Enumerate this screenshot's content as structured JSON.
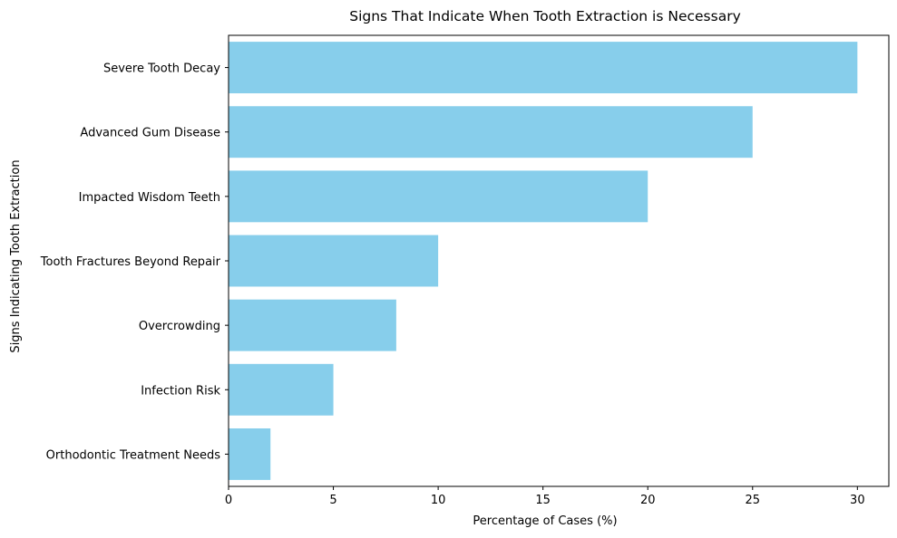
{
  "chart_data": {
    "type": "bar",
    "orientation": "horizontal",
    "title": "Signs That Indicate When Tooth Extraction is Necessary",
    "xlabel": "Percentage of Cases (%)",
    "ylabel": "Signs Indicating Tooth Extraction",
    "categories": [
      "Severe Tooth Decay",
      "Advanced Gum Disease",
      "Impacted Wisdom Teeth",
      "Tooth Fractures Beyond Repair",
      "Overcrowding",
      "Infection Risk",
      "Orthodontic Treatment Needs"
    ],
    "values": [
      30,
      25,
      20,
      10,
      8,
      5,
      2
    ],
    "xlim": [
      0,
      31.5
    ],
    "xticks": [
      0,
      5,
      10,
      15,
      20,
      25,
      30
    ],
    "grid": false,
    "legend": "none",
    "bar_color": "#87CEEB"
  }
}
